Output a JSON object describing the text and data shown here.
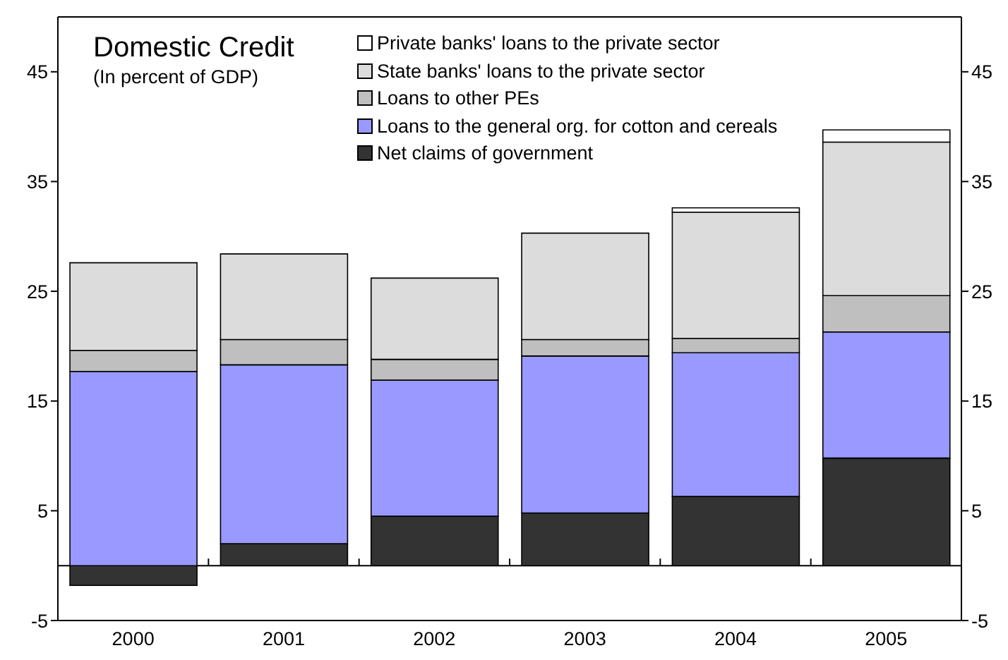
{
  "chart_data": {
    "type": "bar",
    "title": "Domestic Credit",
    "subtitle": "(In percent of GDP)",
    "stacked": true,
    "categories": [
      "2000",
      "2001",
      "2002",
      "2003",
      "2004",
      "2005"
    ],
    "series": [
      {
        "name": "Net claims of government",
        "color": "#333333",
        "values": [
          -1.8,
          2.0,
          4.5,
          4.8,
          6.3,
          9.8
        ]
      },
      {
        "name": "Loans to the general org. for cotton and cereals",
        "color": "#9999ff",
        "values": [
          17.7,
          16.3,
          12.4,
          14.3,
          13.1,
          11.5
        ]
      },
      {
        "name": "Loans to other PEs",
        "color": "#bfbfbf",
        "values": [
          1.9,
          2.3,
          1.9,
          1.5,
          1.3,
          3.3
        ]
      },
      {
        "name": "State banks' loans to the private sector",
        "color": "#dcdcdc",
        "values": [
          8.0,
          7.8,
          7.4,
          9.7,
          11.5,
          14.0
        ]
      },
      {
        "name": "Private banks' loans to the private sector",
        "color": "#ffffff",
        "values": [
          0,
          0,
          0,
          0,
          0.4,
          1.1
        ]
      }
    ],
    "ylim": [
      -5,
      50
    ],
    "yticks": [
      -5,
      5,
      15,
      25,
      35,
      45
    ],
    "y2lim": [
      -5,
      50
    ],
    "y2ticks": [
      -5,
      5,
      15,
      25,
      35,
      45
    ],
    "legend": "top"
  }
}
